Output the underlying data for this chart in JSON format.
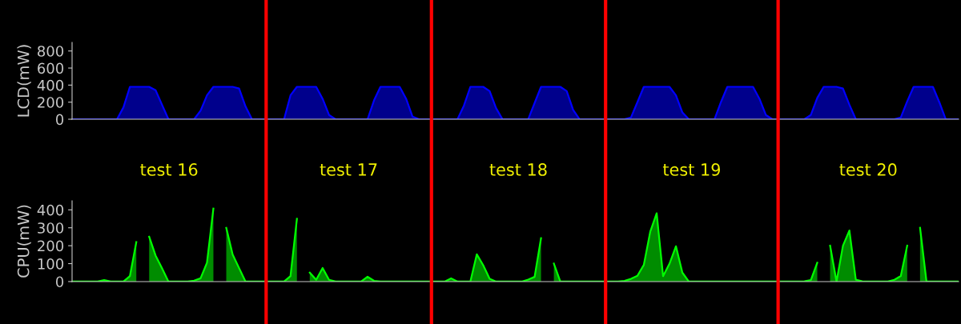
{
  "chart_data": [
    {
      "type": "area",
      "ylabel": "LCD(mW)",
      "ylim": [
        0,
        900
      ],
      "yticks": [
        0,
        200,
        400,
        600,
        800
      ],
      "tick_labels": "y",
      "grid": false,
      "categories": [
        null,
        null,
        null,
        null,
        null,
        null,
        null,
        null,
        null,
        null,
        null,
        null,
        null,
        null,
        null,
        null,
        null,
        null,
        null,
        null,
        null,
        null,
        null,
        null,
        null,
        null,
        null,
        null,
        null,
        null,
        null,
        null,
        null,
        null,
        null,
        null,
        null,
        null,
        null,
        null,
        null,
        null,
        null,
        null,
        null,
        null,
        null,
        null,
        null,
        null,
        null,
        null,
        null,
        null,
        null,
        null,
        null,
        null,
        null,
        null,
        null,
        null,
        null,
        null,
        null,
        null,
        null,
        null,
        null,
        null,
        null,
        null,
        null,
        null,
        null,
        null,
        null,
        null,
        null,
        null,
        null,
        null,
        null,
        null,
        null,
        null,
        null,
        null,
        null,
        null,
        null,
        null,
        null,
        null,
        null,
        null,
        null,
        null,
        null,
        null,
        null,
        null,
        null,
        null,
        null,
        null,
        null,
        null,
        null,
        null,
        null,
        null,
        null,
        null,
        null,
        null,
        null,
        null,
        null,
        null,
        null,
        null,
        null,
        null,
        null,
        null,
        null,
        null,
        null,
        null,
        null,
        null,
        null,
        null,
        null,
        null,
        null,
        null,
        null
      ],
      "series": [
        {
          "color": "#0000ff",
          "values": [
            0,
            0,
            0,
            0,
            0,
            0,
            0,
            0,
            140,
            380,
            380,
            380,
            380,
            340,
            170,
            0,
            0,
            0,
            0,
            0,
            100,
            280,
            380,
            380,
            380,
            380,
            360,
            150,
            0,
            0,
            0,
            0,
            0,
            0,
            280,
            380,
            380,
            380,
            380,
            240,
            50,
            0,
            0,
            0,
            0,
            0,
            0,
            220,
            380,
            380,
            380,
            380,
            240,
            30,
            0,
            0,
            0,
            0,
            0,
            0,
            0,
            160,
            380,
            380,
            380,
            330,
            130,
            0,
            0,
            0,
            0,
            0,
            190,
            380,
            380,
            380,
            380,
            330,
            110,
            0,
            0,
            0,
            0,
            0,
            0,
            0,
            0,
            20,
            200,
            380,
            380,
            380,
            380,
            380,
            280,
            80,
            0,
            0,
            0,
            0,
            0,
            200,
            380,
            380,
            380,
            380,
            380,
            240,
            50,
            0,
            0,
            0,
            0,
            0,
            0,
            50,
            250,
            380,
            380,
            380,
            360,
            170,
            0,
            0,
            0,
            0,
            0,
            0,
            0,
            20,
            210,
            380,
            380,
            380,
            380,
            200,
            0,
            0,
            0
          ]
        }
      ]
    },
    {
      "type": "area",
      "ylabel": "CPU(mW)",
      "ylim": [
        0,
        450
      ],
      "yticks": [
        0,
        100,
        200,
        300,
        400
      ],
      "tick_labels": "y",
      "grid": false,
      "categories": [
        null,
        null,
        null,
        null,
        null,
        null,
        null,
        null,
        null,
        null,
        null,
        null,
        null,
        null,
        null,
        null,
        null,
        null,
        null,
        null,
        null,
        null,
        null,
        null,
        null,
        null,
        null,
        null,
        null,
        null,
        null,
        null,
        null,
        null,
        null,
        null,
        null,
        null,
        null,
        null,
        null,
        null,
        null,
        null,
        null,
        null,
        null,
        null,
        null,
        null,
        null,
        null,
        null,
        null,
        null,
        null,
        null,
        null,
        null,
        null,
        null,
        null,
        null,
        null,
        null,
        null,
        null,
        null,
        null,
        null,
        null,
        null,
        null,
        null,
        null,
        null,
        null,
        null,
        null,
        null,
        null,
        null,
        null,
        null,
        null,
        null,
        null,
        null,
        null,
        null,
        null,
        null,
        null,
        null,
        null,
        null,
        null,
        null,
        null,
        null,
        null,
        null,
        null,
        null,
        null,
        null,
        null,
        null,
        null,
        null,
        null,
        null,
        null,
        null,
        null,
        null,
        null,
        null,
        null,
        null,
        null,
        null,
        null,
        null,
        null,
        null,
        null,
        null,
        null,
        null,
        null,
        null,
        null,
        null,
        null,
        null,
        null,
        null,
        null
      ],
      "annotations": [
        "test 16",
        "test 17",
        "test 18",
        "test 19",
        "test 20"
      ],
      "series": [
        {
          "color": "#00ff00",
          "values": [
            0,
            0,
            0,
            0,
            0,
            8,
            0,
            0,
            0,
            30,
            220,
            null,
            250,
            145,
            74,
            0,
            0,
            0,
            0,
            5,
            18,
            105,
            407,
            null,
            300,
            150,
            75,
            0,
            0,
            0,
            0,
            0,
            0,
            0,
            30,
            350,
            null,
            50,
            10,
            76,
            10,
            0,
            0,
            0,
            0,
            0,
            27,
            4,
            0,
            0,
            0,
            0,
            0,
            0,
            0,
            0,
            0,
            0,
            0,
            18,
            0,
            0,
            0,
            152,
            91,
            15,
            0,
            0,
            0,
            0,
            0,
            11,
            26,
            242,
            null,
            100,
            0,
            0,
            0,
            0,
            0,
            0,
            0,
            0,
            0,
            0,
            4,
            15,
            32,
            93,
            278,
            381,
            30,
            100,
            197,
            50,
            0,
            0,
            0,
            0,
            0,
            0,
            0,
            0,
            0,
            0,
            0,
            0,
            0,
            0,
            0,
            0,
            0,
            0,
            2,
            8,
            105,
            null,
            200,
            0,
            200,
            285,
            10,
            2,
            0,
            0,
            0,
            0,
            10,
            31,
            200,
            null,
            300,
            0,
            0,
            0,
            0,
            0,
            0
          ]
        }
      ]
    }
  ]
}
